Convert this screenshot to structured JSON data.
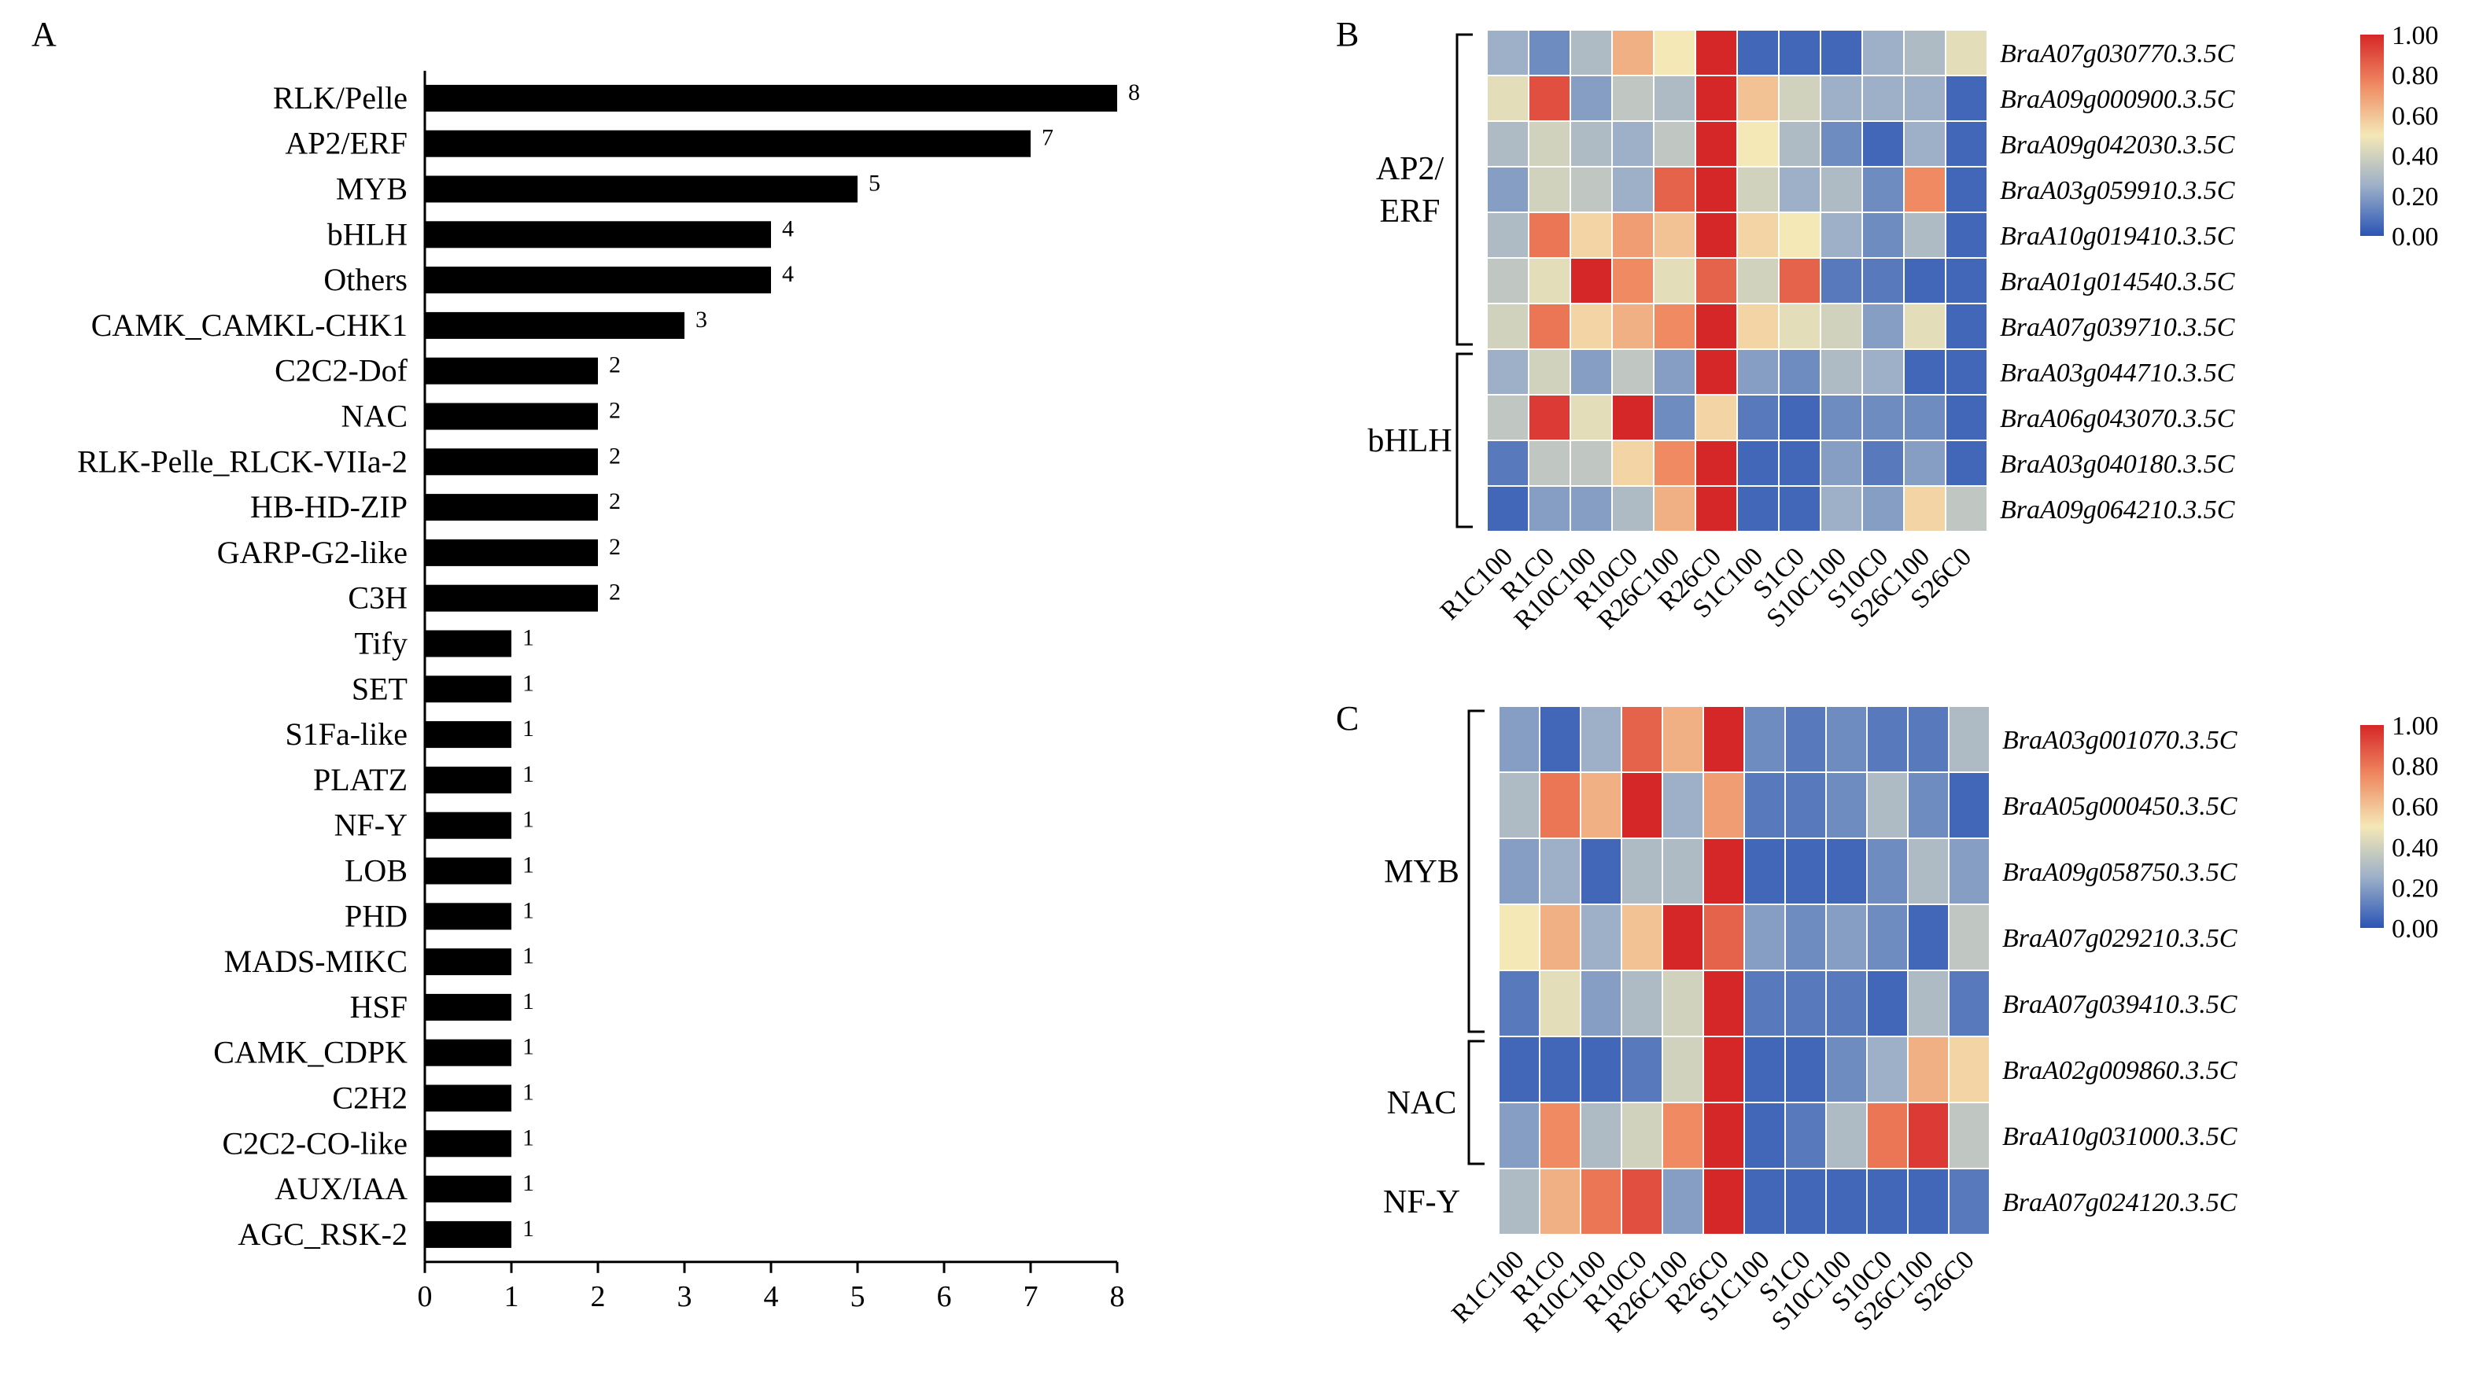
{
  "panels": {
    "a": "A",
    "b": "B",
    "c": "C"
  },
  "colors": {
    "bar": "#000000",
    "low": "#2b55b5",
    "mid": "#f4e8b6",
    "high": "#d62728"
  },
  "colorbar_ticks": [
    "1.00",
    "0.80",
    "0.60",
    "0.40",
    "0.20",
    "0.00"
  ],
  "chart_data": [
    {
      "type": "bar",
      "orientation": "horizontal",
      "title": "",
      "xlabel": "",
      "ylabel": "",
      "xlim": [
        0,
        8
      ],
      "xticks": [
        "0",
        "1",
        "2",
        "3",
        "4",
        "5",
        "6",
        "7",
        "8"
      ],
      "categories": [
        "RLK/Pelle",
        "AP2/ERF",
        "MYB",
        "bHLH",
        "Others",
        "CAMK_CAMKL-CHK1",
        "C2C2-Dof",
        "NAC",
        "RLK-Pelle_RLCK-VIIa-2",
        "HB-HD-ZIP",
        "GARP-G2-like",
        "C3H",
        "Tify",
        "SET",
        "S1Fa-like",
        "PLATZ",
        "NF-Y",
        "LOB",
        "PHD",
        "MADS-MIKC",
        "HSF",
        "CAMK_CDPK",
        "C2H2",
        "C2C2-CO-like",
        "AUX/IAA",
        "AGC_RSK-2"
      ],
      "values": [
        8,
        7,
        5,
        4,
        4,
        3,
        2,
        2,
        2,
        2,
        2,
        2,
        1,
        1,
        1,
        1,
        1,
        1,
        1,
        1,
        1,
        1,
        1,
        1,
        1,
        1
      ],
      "value_labels": [
        "8",
        "7",
        "5",
        "4",
        "4",
        "3",
        "2",
        "2",
        "2",
        "2",
        "2",
        "2",
        "1",
        "1",
        "1",
        "1",
        "1",
        "1",
        "1",
        "1",
        "1",
        "1",
        "1",
        "1",
        "1",
        "1"
      ]
    },
    {
      "type": "heatmap",
      "columns": [
        "R1C100",
        "R1C0",
        "R10C100",
        "R10C0",
        "R26C100",
        "R26C0",
        "S1C100",
        "S1C0",
        "S10C100",
        "S10C0",
        "S26C100",
        "S26C0"
      ],
      "rows": [
        "BraA07g030770.3.5C",
        "BraA09g000900.3.5C",
        "BraA09g042030.3.5C",
        "BraA03g059910.3.5C",
        "BraA10g019410.3.5C",
        "BraA01g014540.3.5C",
        "BraA07g039710.3.5C",
        "BraA03g044710.3.5C",
        "BraA06g043070.3.5C",
        "BraA03g040180.3.5C",
        "BraA09g064210.3.5C"
      ],
      "groups": [
        {
          "label": "AP2/ ERF",
          "lines": [
            "AP2/",
            "ERF"
          ],
          "start": 0,
          "end": 6
        },
        {
          "label": "bHLH",
          "lines": [
            "bHLH"
          ],
          "start": 7,
          "end": 10
        }
      ],
      "colorbar_range": [
        0,
        1
      ],
      "values": [
        [
          0.25,
          0.15,
          0.3,
          0.65,
          0.5,
          1.0,
          0.05,
          0.05,
          0.05,
          0.25,
          0.3,
          0.45
        ],
        [
          0.45,
          0.9,
          0.2,
          0.35,
          0.3,
          1.0,
          0.6,
          0.4,
          0.25,
          0.25,
          0.25,
          0.05
        ],
        [
          0.3,
          0.4,
          0.3,
          0.25,
          0.35,
          1.0,
          0.5,
          0.3,
          0.15,
          0.05,
          0.25,
          0.05
        ],
        [
          0.2,
          0.4,
          0.35,
          0.25,
          0.85,
          1.0,
          0.4,
          0.25,
          0.3,
          0.15,
          0.75,
          0.05
        ],
        [
          0.3,
          0.8,
          0.55,
          0.7,
          0.6,
          1.0,
          0.55,
          0.5,
          0.25,
          0.15,
          0.3,
          0.05
        ],
        [
          0.35,
          0.45,
          1.0,
          0.75,
          0.45,
          0.85,
          0.4,
          0.85,
          0.1,
          0.1,
          0.05,
          0.05
        ],
        [
          0.4,
          0.8,
          0.55,
          0.65,
          0.75,
          1.0,
          0.55,
          0.45,
          0.4,
          0.2,
          0.45,
          0.05
        ],
        [
          0.25,
          0.4,
          0.2,
          0.35,
          0.2,
          1.0,
          0.2,
          0.15,
          0.3,
          0.25,
          0.05,
          0.05
        ],
        [
          0.35,
          0.95,
          0.45,
          1.0,
          0.15,
          0.55,
          0.1,
          0.05,
          0.15,
          0.15,
          0.15,
          0.05
        ],
        [
          0.1,
          0.35,
          0.35,
          0.55,
          0.75,
          1.0,
          0.05,
          0.05,
          0.2,
          0.1,
          0.2,
          0.05
        ],
        [
          0.05,
          0.2,
          0.2,
          0.3,
          0.65,
          1.0,
          0.05,
          0.05,
          0.25,
          0.2,
          0.55,
          0.35
        ]
      ]
    },
    {
      "type": "heatmap",
      "columns": [
        "R1C100",
        "R1C0",
        "R10C100",
        "R10C0",
        "R26C100",
        "R26C0",
        "S1C100",
        "S1C0",
        "S10C100",
        "S10C0",
        "S26C100",
        "S26C0"
      ],
      "rows": [
        "BraA03g001070.3.5C",
        "BraA05g000450.3.5C",
        "BraA09g058750.3.5C",
        "BraA07g029210.3.5C",
        "BraA07g039410.3.5C",
        "BraA02g009860.3.5C",
        "BraA10g031000.3.5C",
        "BraA07g024120.3.5C"
      ],
      "groups": [
        {
          "label": "MYB",
          "lines": [
            "MYB"
          ],
          "start": 0,
          "end": 4
        },
        {
          "label": "NAC",
          "lines": [
            "NAC"
          ],
          "start": 5,
          "end": 6
        },
        {
          "label": "NF-Y",
          "lines": [
            "NF-Y"
          ],
          "start": 7,
          "end": 7
        }
      ],
      "colorbar_range": [
        0,
        1
      ],
      "values": [
        [
          0.2,
          0.05,
          0.25,
          0.85,
          0.65,
          1.0,
          0.15,
          0.1,
          0.15,
          0.1,
          0.1,
          0.3
        ],
        [
          0.3,
          0.8,
          0.65,
          1.0,
          0.25,
          0.7,
          0.1,
          0.1,
          0.15,
          0.3,
          0.15,
          0.05
        ],
        [
          0.2,
          0.25,
          0.05,
          0.3,
          0.3,
          1.0,
          0.05,
          0.05,
          0.05,
          0.15,
          0.3,
          0.2
        ],
        [
          0.5,
          0.65,
          0.25,
          0.6,
          1.0,
          0.85,
          0.2,
          0.15,
          0.2,
          0.15,
          0.05,
          0.35
        ],
        [
          0.1,
          0.45,
          0.2,
          0.3,
          0.4,
          1.0,
          0.1,
          0.1,
          0.1,
          0.05,
          0.3,
          0.1
        ],
        [
          0.05,
          0.05,
          0.05,
          0.1,
          0.4,
          1.0,
          0.05,
          0.05,
          0.15,
          0.25,
          0.65,
          0.55
        ],
        [
          0.2,
          0.75,
          0.3,
          0.4,
          0.75,
          1.0,
          0.05,
          0.1,
          0.3,
          0.8,
          0.95,
          0.35
        ],
        [
          0.3,
          0.65,
          0.8,
          0.9,
          0.2,
          1.0,
          0.05,
          0.05,
          0.05,
          0.05,
          0.05,
          0.1
        ]
      ]
    }
  ]
}
